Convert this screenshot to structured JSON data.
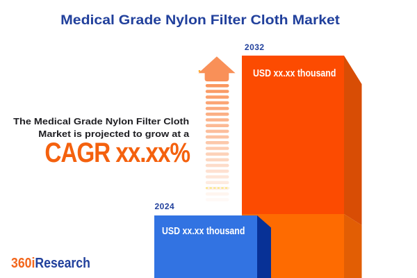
{
  "page": {
    "background": "#ffffff"
  },
  "title": {
    "text": "Medical Grade Nylon Filter Cloth Market",
    "color": "#21409c"
  },
  "description": {
    "line1": "The Medical Grade Nylon Filter Cloth",
    "line2": "Market is projected to grow at a",
    "color": "#1e1e22"
  },
  "cagr": {
    "text": "CAGR xx.xx%",
    "color": "#f4610e"
  },
  "logo": {
    "prefix": "360i",
    "suffix": "Research",
    "prefix_color": "#f2661c",
    "suffix_color": "#21409c"
  },
  "arrow": {
    "icon": "growth-up-arrow-icon",
    "color": "#f99058",
    "stripe_color": "#fa9156",
    "stripe_count": 21
  },
  "chart_data": {
    "type": "bar",
    "categories": [
      "2024",
      "2032"
    ],
    "values": [
      null,
      null
    ],
    "value_labels": [
      "USD xx.xx thousand",
      "USD xx.xx thousand"
    ],
    "unit": "USD thousand",
    "title": "Medical Grade Nylon Filter Cloth Market",
    "xlabel": "",
    "ylabel": "",
    "legend": false,
    "grid": false,
    "bar_colors": {
      "bar_2024_front": "#3273e2",
      "bar_2024_side": "#083196",
      "bar_2032_front_upper": "#fc4b01",
      "bar_2032_side_upper": "#d84d05",
      "bar_2032_front_lower": "#fe6b01",
      "bar_2032_side_lower": "#e25e04"
    }
  }
}
